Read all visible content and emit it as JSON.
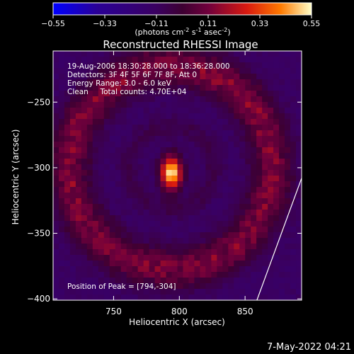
{
  "chart_data": {
    "type": "heatmap",
    "title": "Reconstructed RHESSI Image",
    "xlabel": "Heliocentric X (arcsec)",
    "ylabel": "Heliocentric Y (arcsec)",
    "xlim": [
      704,
      893
    ],
    "ylim": [
      -401,
      -211
    ],
    "x_ticks": [
      750,
      800,
      850
    ],
    "y_ticks": [
      -250,
      -300,
      -350,
      -400
    ],
    "colorbar": {
      "range": [
        -0.55,
        0.55
      ],
      "ticks": [
        "-0.55",
        "-0.33",
        "-0.11",
        "0.11",
        "0.33",
        "0.55"
      ],
      "unit_main": "(photons cm",
      "unit_exp1": "-2",
      "unit_mid": " s",
      "unit_exp2": "-1",
      "unit_end": " asec",
      "unit_exp3": "-2",
      "unit_close": ")"
    },
    "annotations": [
      "19-Aug-2006 18:30:28.000 to 18:36:28.000",
      "Detectors: 3F 4F 5F 6F 7F 8F, Att 0",
      "Energy Range: 3.0 - 6.0 keV",
      "Clean     Total counts: 4.70E+04"
    ],
    "peak_label": "Position of Peak = [794,-304]",
    "peak": {
      "x": 794,
      "y": -304,
      "value": 0.55
    },
    "source_sigma": {
      "x": 5.5,
      "y": 9
    },
    "ring": {
      "center_x": 794,
      "center_y": -300,
      "radius": 77,
      "width": 15,
      "value": 0.26
    },
    "inner_ring": {
      "radius": 32,
      "value": 0.01
    },
    "background_value": -0.12,
    "limb_line": [
      [
        859,
        -401
      ],
      [
        893,
        -308
      ]
    ]
  },
  "footer_date": "7-May-2022 04:21"
}
